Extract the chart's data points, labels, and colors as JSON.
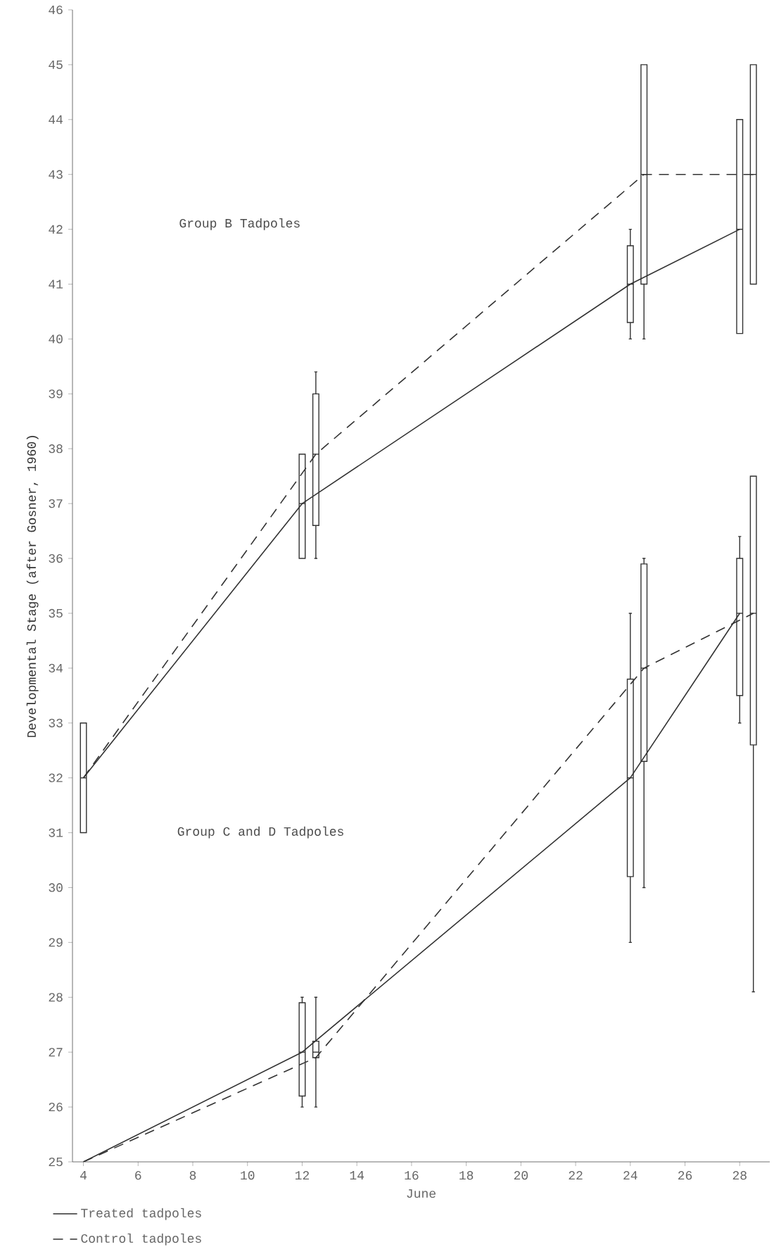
{
  "chart_data": {
    "type": "line",
    "xlabel": "June",
    "ylabel": "Developmental Stage (after Gosner, 1960)",
    "xlim": [
      3.6,
      29.1
    ],
    "ylim": [
      25,
      46
    ],
    "xticks": [
      4,
      6,
      8,
      10,
      12,
      14,
      16,
      18,
      20,
      22,
      24,
      26,
      28
    ],
    "yticks": [
      25,
      26,
      27,
      28,
      29,
      30,
      31,
      32,
      33,
      34,
      35,
      36,
      37,
      38,
      39,
      40,
      41,
      42,
      43,
      44,
      45,
      46
    ],
    "legend": "bottom left",
    "marker": "none",
    "grid": false,
    "annotations": [
      "Group B Tadpoles",
      "Group C and D Tadpoles"
    ],
    "series": [
      {
        "name": "Treated tadpoles",
        "line_style": "solid",
        "color": "#333333",
        "x": [
          4,
          12,
          24,
          28
        ],
        "values": [
          32,
          37,
          41,
          42
        ]
      },
      {
        "name": "Control tadpoles",
        "line_style": "dashed",
        "color": "#333333",
        "x": [
          4,
          12.5,
          24.5,
          28.5
        ],
        "values": [
          32,
          37.9,
          43,
          43
        ]
      },
      {
        "line_style": "solid",
        "color": "#333333",
        "x": [
          4,
          12,
          24,
          28
        ],
        "values": [
          25,
          27,
          32,
          35
        ]
      },
      {
        "line_style": "dashed",
        "color": "#333333",
        "x": [
          4,
          12.5,
          24.5,
          28.5
        ],
        "values": [
          25,
          26.9,
          34,
          35
        ]
      },
      {
        "type": "box",
        "color": "#333333",
        "x": [
          4,
          12,
          24,
          28
        ],
        "boxes": [
          {
            "low": 31,
            "q1": 31,
            "median": 32,
            "q3": 33,
            "high": 33
          },
          {
            "low": 36,
            "q1": 36,
            "median": 37,
            "q3": 37.9,
            "high": 37.9
          },
          {
            "low": 40,
            "q1": 40.3,
            "median": 41,
            "q3": 41.7,
            "high": 42
          },
          {
            "low": 40.1,
            "q1": 40.1,
            "median": 42,
            "q3": 44,
            "high": 44
          }
        ]
      },
      {
        "type": "box",
        "color": "#333333",
        "x": [
          12.5,
          24.5,
          28.5
        ],
        "boxes": [
          {
            "low": 36,
            "q1": 36.6,
            "median": 37.9,
            "q3": 39,
            "high": 39.4
          },
          {
            "low": 40,
            "q1": 41,
            "median": 43,
            "q3": 45,
            "high": 45
          },
          {
            "low": 41,
            "q1": 41,
            "median": 43,
            "q3": 45,
            "high": 45
          }
        ]
      },
      {
        "type": "box",
        "color": "#333333",
        "x": [
          12,
          24,
          28
        ],
        "boxes": [
          {
            "low": 26,
            "q1": 26.2,
            "median": 27,
            "q3": 27.9,
            "high": 28
          },
          {
            "low": 29,
            "q1": 30.2,
            "median": 32,
            "q3": 33.8,
            "high": 35
          },
          {
            "low": 33,
            "q1": 33.5,
            "median": 35,
            "q3": 36,
            "high": 36.4
          }
        ]
      },
      {
        "type": "box",
        "color": "#333333",
        "x": [
          12.5,
          24.5,
          28.5
        ],
        "boxes": [
          {
            "low": 26,
            "q1": 26.9,
            "median": 27,
            "q3": 27.2,
            "high": 28
          },
          {
            "low": 30,
            "q1": 32.3,
            "median": 34,
            "q3": 35.9,
            "high": 36
          },
          {
            "low": 28.1,
            "q1": 32.6,
            "median": 35,
            "q3": 37.5,
            "high": 37.5
          }
        ]
      }
    ]
  }
}
